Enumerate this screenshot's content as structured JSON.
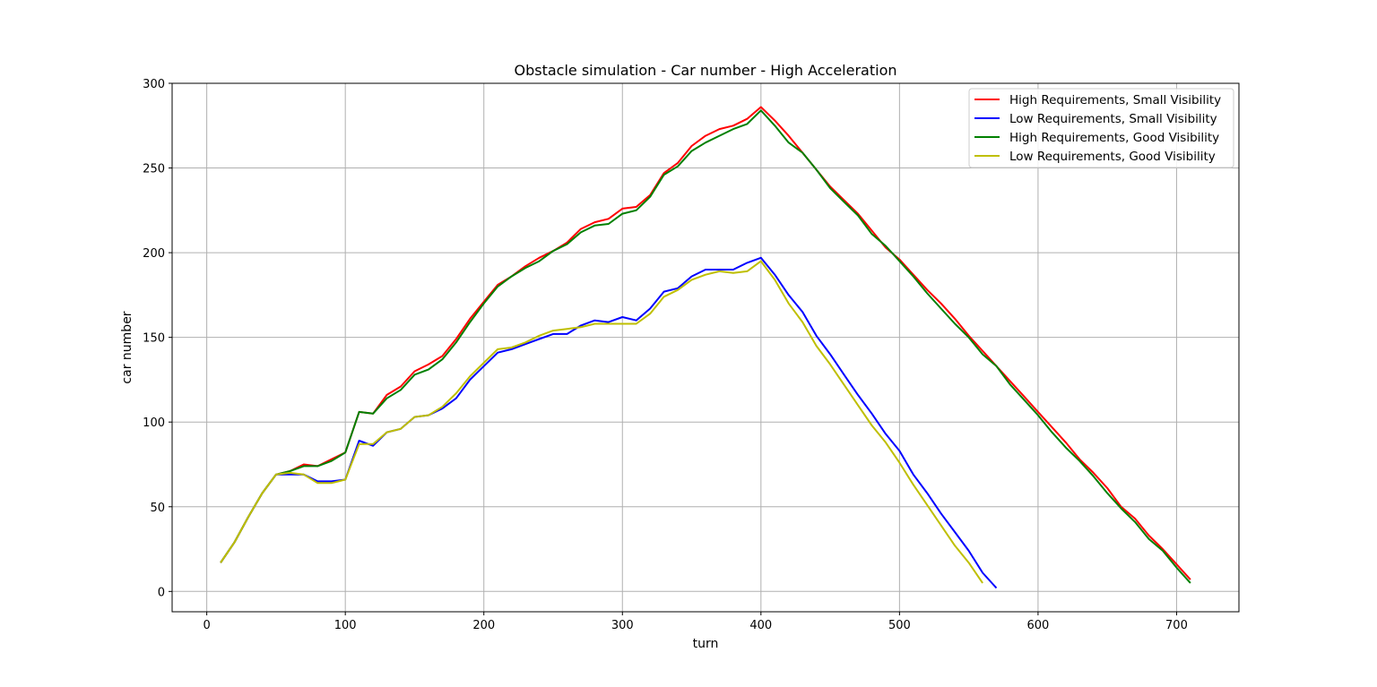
{
  "chart_data": {
    "type": "line",
    "title": "Obstacle simulation - Car number - High Acceleration",
    "xlabel": "turn",
    "ylabel": "car number",
    "xlim": [
      -25,
      745
    ],
    "ylim": [
      -12,
      300
    ],
    "xticks": [
      0,
      100,
      200,
      300,
      400,
      500,
      600,
      700
    ],
    "yticks": [
      0,
      50,
      100,
      150,
      200,
      250,
      300
    ],
    "grid": true,
    "legend_position": "top-right",
    "series": [
      {
        "name": "High Requirements, Small Visibility",
        "color": "#ff0000",
        "x": [
          10,
          20,
          30,
          40,
          50,
          60,
          70,
          80,
          90,
          100,
          110,
          120,
          130,
          140,
          150,
          160,
          170,
          180,
          190,
          200,
          210,
          220,
          230,
          240,
          250,
          260,
          270,
          280,
          290,
          300,
          310,
          320,
          330,
          340,
          350,
          360,
          370,
          380,
          390,
          400,
          410,
          420,
          430,
          440,
          450,
          460,
          470,
          480,
          490,
          500,
          510,
          520,
          530,
          540,
          550,
          560,
          570,
          580,
          590,
          600,
          610,
          620,
          630,
          640,
          650,
          660,
          670,
          680,
          690,
          700,
          710
        ],
        "y": [
          17,
          29,
          44,
          58,
          69,
          71,
          75,
          74,
          78,
          82,
          106,
          105,
          116,
          121,
          130,
          134,
          139,
          149,
          161,
          171,
          181,
          186,
          192,
          197,
          201,
          206,
          214,
          218,
          220,
          226,
          227,
          234,
          247,
          253,
          263,
          269,
          273,
          275,
          279,
          286,
          278,
          269,
          259,
          249,
          239,
          231,
          223,
          213,
          203,
          196,
          187,
          178,
          170,
          161,
          151,
          142,
          133,
          124,
          115,
          106,
          97,
          88,
          78,
          70,
          61,
          50,
          43,
          33,
          25,
          16,
          7
        ]
      },
      {
        "name": "Low Requirements, Small Visibility",
        "color": "#0000ff",
        "x": [
          10,
          20,
          30,
          40,
          50,
          60,
          70,
          80,
          90,
          100,
          110,
          120,
          130,
          140,
          150,
          160,
          170,
          180,
          190,
          200,
          210,
          220,
          230,
          240,
          250,
          260,
          270,
          280,
          290,
          300,
          310,
          320,
          330,
          340,
          350,
          360,
          370,
          380,
          390,
          400,
          410,
          420,
          430,
          440,
          450,
          460,
          470,
          480,
          490,
          500,
          510,
          520,
          530,
          540,
          550,
          560,
          570
        ],
        "y": [
          17,
          29,
          44,
          58,
          69,
          69,
          69,
          65,
          65,
          66,
          89,
          86,
          94,
          96,
          103,
          104,
          108,
          114,
          125,
          133,
          141,
          143,
          146,
          149,
          152,
          152,
          157,
          160,
          159,
          162,
          160,
          167,
          177,
          179,
          186,
          190,
          190,
          190,
          194,
          197,
          187,
          175,
          165,
          151,
          140,
          128,
          116,
          105,
          93,
          83,
          69,
          58,
          46,
          35,
          24,
          11,
          2
        ]
      },
      {
        "name": "High Requirements, Good Visibility",
        "color": "#008000",
        "x": [
          10,
          20,
          30,
          40,
          50,
          60,
          70,
          80,
          90,
          100,
          110,
          120,
          130,
          140,
          150,
          160,
          170,
          180,
          190,
          200,
          210,
          220,
          230,
          240,
          250,
          260,
          270,
          280,
          290,
          300,
          310,
          320,
          330,
          340,
          350,
          360,
          370,
          380,
          390,
          400,
          410,
          420,
          430,
          440,
          450,
          460,
          470,
          480,
          490,
          500,
          510,
          520,
          530,
          540,
          550,
          560,
          570,
          580,
          590,
          600,
          610,
          620,
          630,
          640,
          650,
          660,
          670,
          680,
          690,
          700,
          710
        ],
        "y": [
          17,
          29,
          44,
          58,
          69,
          71,
          74,
          74,
          77,
          82,
          106,
          105,
          114,
          119,
          128,
          131,
          137,
          147,
          159,
          170,
          180,
          186,
          191,
          195,
          201,
          205,
          212,
          216,
          217,
          223,
          225,
          233,
          246,
          251,
          260,
          265,
          269,
          273,
          276,
          284,
          275,
          265,
          259,
          249,
          238,
          230,
          222,
          211,
          204,
          195,
          186,
          176,
          167,
          158,
          150,
          140,
          133,
          122,
          113,
          104,
          94,
          85,
          77,
          68,
          58,
          49,
          41,
          31,
          24,
          14,
          5
        ]
      },
      {
        "name": "Low Requirements, Good Visibility",
        "color": "#bfbf00",
        "x": [
          10,
          20,
          30,
          40,
          50,
          60,
          70,
          80,
          90,
          100,
          110,
          120,
          130,
          140,
          150,
          160,
          170,
          180,
          190,
          200,
          210,
          220,
          230,
          240,
          250,
          260,
          270,
          280,
          290,
          300,
          310,
          320,
          330,
          340,
          350,
          360,
          370,
          380,
          390,
          400,
          410,
          420,
          430,
          440,
          450,
          460,
          470,
          480,
          490,
          500,
          510,
          520,
          530,
          540,
          550,
          560
        ],
        "y": [
          17,
          29,
          44,
          58,
          69,
          70,
          69,
          64,
          64,
          66,
          87,
          87,
          94,
          96,
          103,
          104,
          109,
          117,
          127,
          135,
          143,
          144,
          147,
          151,
          154,
          155,
          156,
          158,
          158,
          158,
          158,
          164,
          174,
          178,
          184,
          187,
          189,
          188,
          189,
          195,
          184,
          170,
          159,
          145,
          134,
          122,
          110,
          98,
          88,
          76,
          63,
          51,
          39,
          27,
          17,
          5
        ]
      }
    ]
  }
}
